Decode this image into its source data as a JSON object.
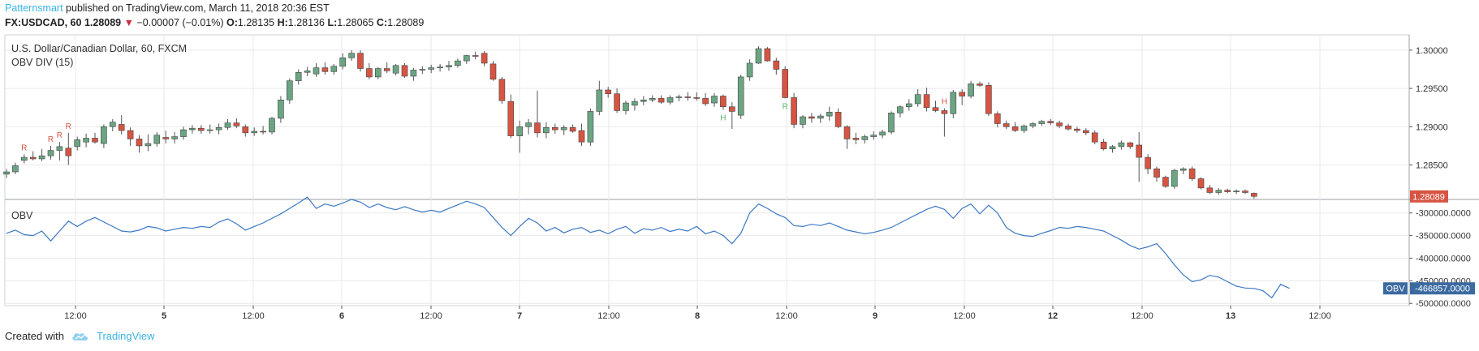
{
  "header": {
    "author": "Patternsmart",
    "published_text": " published on TradingView.com, March 11, 2018 20:36 EST"
  },
  "symbol_line": {
    "symbol": "FX:USDCAD, 60",
    "last": "1.28089",
    "change_arrow": "▼",
    "change": "−0.00007 (−0.01%)",
    "o_label": "O:",
    "o_value": "1.28135",
    "h_label": "H:",
    "h_value": "1.28136",
    "l_label": "L:",
    "l_value": "1.28065",
    "c_label": "C:",
    "c_value": "1.28089"
  },
  "chart_labels": {
    "instrument": "U.S. Dollar/Canadian Dollar, 60, FXCM",
    "indicator": "OBV DIV (15)",
    "obv_pane": "OBV",
    "last_price_tag": "1.28089",
    "obv_tag_name": "OBV",
    "obv_tag_value": "-466857.0000"
  },
  "footer": {
    "created_with": "Created with",
    "brand": "TradingView"
  },
  "colors": {
    "up": "#6ba583",
    "down": "#d75442",
    "obv_line": "#3c78c2",
    "grid": "#e9e9ea",
    "accent": "#3bb3e4",
    "obv_tag": "#3b6aa0"
  },
  "icons": {
    "brand_logo": "tradingview-cloud-icon"
  },
  "chart_data": [
    {
      "type": "candlestick",
      "title": "U.S. Dollar/Canadian Dollar, 60, FXCM",
      "y_ticks": [
        "1.30000",
        "1.29500",
        "1.29000",
        "1.28500"
      ],
      "x_ticks": [
        "12:00",
        "5",
        "12:00",
        "6",
        "12:00",
        "7",
        "12:00",
        "8",
        "12:00",
        "9",
        "12:00",
        "12",
        "12:00",
        "13",
        "12:00"
      ],
      "ylim": [
        1.2805,
        1.302
      ],
      "last_close": 1.28089,
      "candles": [
        [
          1.2838,
          1.2845,
          1.2833,
          1.2841
        ],
        [
          1.2841,
          1.2853,
          1.2838,
          1.2849
        ],
        [
          1.2856,
          1.2864,
          1.2852,
          1.286
        ],
        [
          1.286,
          1.2868,
          1.2856,
          1.2858
        ],
        [
          1.2858,
          1.2871,
          1.2855,
          1.2862
        ],
        [
          1.2862,
          1.2875,
          1.2857,
          1.2869
        ],
        [
          1.2869,
          1.288,
          1.2856,
          1.2874
        ],
        [
          1.2872,
          1.2892,
          1.285,
          1.2862
        ],
        [
          1.2874,
          1.2887,
          1.2869,
          1.2883
        ],
        [
          1.288,
          1.2891,
          1.2873,
          1.2885
        ],
        [
          1.2885,
          1.2892,
          1.2878,
          1.288
        ],
        [
          1.2878,
          1.2903,
          1.2872,
          1.29
        ],
        [
          1.29,
          1.291,
          1.2894,
          1.2906
        ],
        [
          1.2903,
          1.2915,
          1.289,
          1.2895
        ],
        [
          1.2895,
          1.2899,
          1.2875,
          1.2884
        ],
        [
          1.2884,
          1.2889,
          1.2866,
          1.2875
        ],
        [
          1.2875,
          1.289,
          1.2868,
          1.2878
        ],
        [
          1.2878,
          1.2893,
          1.2874,
          1.2889
        ],
        [
          1.2886,
          1.2895,
          1.2878,
          1.2884
        ],
        [
          1.2884,
          1.2893,
          1.2878,
          1.2887
        ],
        [
          1.2887,
          1.29,
          1.2883,
          1.2896
        ],
        [
          1.2896,
          1.2902,
          1.2891,
          1.2898
        ],
        [
          1.2898,
          1.2902,
          1.2891,
          1.2895
        ],
        [
          1.2895,
          1.2903,
          1.2891,
          1.2896
        ],
        [
          1.2896,
          1.2904,
          1.289,
          1.2899
        ],
        [
          1.2899,
          1.291,
          1.2896,
          1.2905
        ],
        [
          1.2905,
          1.2911,
          1.2898,
          1.2901
        ],
        [
          1.29,
          1.2903,
          1.2887,
          1.2892
        ],
        [
          1.2892,
          1.2899,
          1.2888,
          1.2894
        ],
        [
          1.2894,
          1.2901,
          1.289,
          1.2893
        ],
        [
          1.2893,
          1.2913,
          1.289,
          1.2911
        ],
        [
          1.2911,
          1.294,
          1.2905,
          1.2935
        ],
        [
          1.2935,
          1.2963,
          1.293,
          1.296
        ],
        [
          1.296,
          1.2975,
          1.2955,
          1.2971
        ],
        [
          1.2971,
          1.2978,
          1.2966,
          1.2973
        ],
        [
          1.2969,
          1.2983,
          1.2965,
          1.2977
        ],
        [
          1.2977,
          1.2984,
          1.2968,
          1.2972
        ],
        [
          1.2972,
          1.2982,
          1.2968,
          1.2979
        ],
        [
          1.2979,
          1.2996,
          1.2975,
          1.299
        ],
        [
          1.299,
          1.3,
          1.2986,
          1.2996
        ],
        [
          1.2996,
          1.3,
          1.2972,
          1.2976
        ],
        [
          1.2976,
          1.2983,
          1.2962,
          1.2965
        ],
        [
          1.2965,
          1.2978,
          1.2962,
          1.2976
        ],
        [
          1.2976,
          1.2984,
          1.297,
          1.2973
        ],
        [
          1.297,
          1.2982,
          1.2967,
          1.298
        ],
        [
          1.298,
          1.2983,
          1.2964,
          1.2966
        ],
        [
          1.2966,
          1.2977,
          1.296,
          1.2974
        ],
        [
          1.2974,
          1.2979,
          1.2969,
          1.2975
        ],
        [
          1.2975,
          1.2981,
          1.297,
          1.2977
        ],
        [
          1.2977,
          1.2982,
          1.2972,
          1.2978
        ],
        [
          1.2978,
          1.2986,
          1.2973,
          1.298
        ],
        [
          1.298,
          1.2989,
          1.2977,
          1.2986
        ],
        [
          1.2986,
          1.2994,
          1.2982,
          1.2993
        ],
        [
          1.2993,
          1.2998,
          1.2988,
          1.2992
        ],
        [
          1.2996,
          1.2999,
          1.2979,
          1.2983
        ],
        [
          1.2982,
          1.2986,
          1.296,
          1.2962
        ],
        [
          1.2962,
          1.2965,
          1.293,
          1.2934
        ],
        [
          1.2933,
          1.2942,
          1.2885,
          1.2888
        ],
        [
          1.2888,
          1.2908,
          1.2866,
          1.29
        ],
        [
          1.29,
          1.291,
          1.289,
          1.2905
        ],
        [
          1.2905,
          1.2947,
          1.2886,
          1.2892
        ],
        [
          1.2892,
          1.2906,
          1.2885,
          1.2899
        ],
        [
          1.2899,
          1.2904,
          1.2891,
          1.2896
        ],
        [
          1.2896,
          1.2902,
          1.2889,
          1.2899
        ],
        [
          1.2899,
          1.2903,
          1.2892,
          1.2894
        ],
        [
          1.2895,
          1.2904,
          1.2875,
          1.288
        ],
        [
          1.288,
          1.2924,
          1.2875,
          1.292
        ],
        [
          1.292,
          1.296,
          1.2915,
          1.2948
        ],
        [
          1.2948,
          1.2952,
          1.2938,
          1.2943
        ],
        [
          1.2943,
          1.295,
          1.2918,
          1.2921
        ],
        [
          1.2921,
          1.2934,
          1.2916,
          1.2931
        ],
        [
          1.2928,
          1.2937,
          1.2921,
          1.2933
        ],
        [
          1.2933,
          1.294,
          1.2928,
          1.2935
        ],
        [
          1.2935,
          1.2941,
          1.2932,
          1.2937
        ],
        [
          1.2937,
          1.2941,
          1.293,
          1.2932
        ],
        [
          1.2932,
          1.2941,
          1.2929,
          1.2938
        ],
        [
          1.2938,
          1.2942,
          1.2933,
          1.2939
        ],
        [
          1.2939,
          1.2945,
          1.2934,
          1.2938
        ],
        [
          1.2938,
          1.2945,
          1.2934,
          1.2937
        ],
        [
          1.2937,
          1.2944,
          1.2927,
          1.293
        ],
        [
          1.2931,
          1.2944,
          1.2926,
          1.294
        ],
        [
          1.294,
          1.2942,
          1.2922,
          1.2926
        ],
        [
          1.2926,
          1.2932,
          1.2897,
          1.292
        ],
        [
          1.2915,
          1.2968,
          1.291,
          1.2965
        ],
        [
          1.2965,
          1.2988,
          1.296,
          1.2983
        ],
        [
          1.2983,
          1.3005,
          1.2982,
          1.3002
        ],
        [
          1.3002,
          1.3004,
          1.2985,
          1.2986
        ],
        [
          1.2986,
          1.299,
          1.2968,
          1.2975
        ],
        [
          1.2975,
          1.2979,
          1.2937,
          1.2938
        ],
        [
          1.2938,
          1.2944,
          1.2898,
          1.2903
        ],
        [
          1.2903,
          1.2915,
          1.2898,
          1.2913
        ],
        [
          1.2913,
          1.2918,
          1.2905,
          1.2911
        ],
        [
          1.2911,
          1.2917,
          1.2905,
          1.2914
        ],
        [
          1.2914,
          1.2926,
          1.2908,
          1.2919
        ],
        [
          1.2919,
          1.2924,
          1.2898,
          1.29
        ],
        [
          1.29,
          1.2902,
          1.2871,
          1.2884
        ],
        [
          1.2885,
          1.2892,
          1.2877,
          1.2883
        ],
        [
          1.2883,
          1.289,
          1.2878,
          1.2887
        ],
        [
          1.2887,
          1.2894,
          1.2883,
          1.2889
        ],
        [
          1.2889,
          1.2896,
          1.2885,
          1.2893
        ],
        [
          1.2893,
          1.292,
          1.289,
          1.2918
        ],
        [
          1.2918,
          1.2928,
          1.2912,
          1.2926
        ],
        [
          1.2926,
          1.2936,
          1.2921,
          1.293
        ],
        [
          1.293,
          1.2949,
          1.2926,
          1.2942
        ],
        [
          1.2942,
          1.2951,
          1.292,
          1.2925
        ],
        [
          1.2925,
          1.2934,
          1.2919,
          1.2921
        ],
        [
          1.2921,
          1.2924,
          1.2887,
          1.2917
        ],
        [
          1.2917,
          1.2948,
          1.2911,
          1.2945
        ],
        [
          1.2945,
          1.2949,
          1.2928,
          1.294
        ],
        [
          1.294,
          1.296,
          1.2937,
          1.2956
        ],
        [
          1.2956,
          1.2959,
          1.2952,
          1.2954
        ],
        [
          1.2954,
          1.2958,
          1.2914,
          1.2917
        ],
        [
          1.2917,
          1.292,
          1.2899,
          1.2904
        ],
        [
          1.2904,
          1.2908,
          1.2897,
          1.29
        ],
        [
          1.29,
          1.2906,
          1.2893,
          1.2895
        ],
        [
          1.2895,
          1.2903,
          1.2892,
          1.2901
        ],
        [
          1.2901,
          1.2906,
          1.2898,
          1.2904
        ],
        [
          1.2904,
          1.2909,
          1.2901,
          1.2907
        ],
        [
          1.2907,
          1.291,
          1.2902,
          1.2905
        ],
        [
          1.2905,
          1.2908,
          1.2898,
          1.2901
        ],
        [
          1.2901,
          1.2904,
          1.2895,
          1.2897
        ],
        [
          1.2897,
          1.29,
          1.2892,
          1.2895
        ],
        [
          1.2895,
          1.2898,
          1.2889,
          1.2892
        ],
        [
          1.2892,
          1.2895,
          1.2877,
          1.288
        ],
        [
          1.288,
          1.2884,
          1.2869,
          1.2871
        ],
        [
          1.2871,
          1.2876,
          1.2866,
          1.2874
        ],
        [
          1.2874,
          1.2882,
          1.287,
          1.2879
        ],
        [
          1.2879,
          1.288,
          1.2871,
          1.2874
        ],
        [
          1.2876,
          1.2893,
          1.2828,
          1.286
        ],
        [
          1.286,
          1.2864,
          1.2838,
          1.2845
        ],
        [
          1.2845,
          1.2848,
          1.2828,
          1.2834
        ],
        [
          1.2834,
          1.2836,
          1.282,
          1.2822
        ],
        [
          1.2822,
          1.2845,
          1.2819,
          1.2843
        ],
        [
          1.2843,
          1.2847,
          1.2838,
          1.2845
        ],
        [
          1.2845,
          1.2848,
          1.2829,
          1.2832
        ],
        [
          1.2832,
          1.2834,
          1.2818,
          1.282
        ],
        [
          1.282,
          1.2824,
          1.2812,
          1.2814
        ],
        [
          1.2814,
          1.282,
          1.2811,
          1.2817
        ],
        [
          1.2817,
          1.2819,
          1.2813,
          1.2815
        ],
        [
          1.2815,
          1.2818,
          1.2812,
          1.2816
        ],
        [
          1.2816,
          1.2818,
          1.2812,
          1.2814
        ],
        [
          1.2813,
          1.2814,
          1.2806,
          1.2809
        ]
      ],
      "markers": [
        {
          "candle": 2,
          "text": "R",
          "color": "#d75442",
          "pos": "above"
        },
        {
          "candle": 5,
          "text": "R",
          "color": "#d75442",
          "pos": "above"
        },
        {
          "candle": 6,
          "text": "R",
          "color": "#d75442",
          "pos": "above"
        },
        {
          "candle": 7,
          "text": "R",
          "color": "#d75442",
          "pos": "above"
        },
        {
          "candle": 81,
          "text": "H",
          "color": "#55b26a",
          "pos": "below"
        },
        {
          "candle": 88,
          "text": "R",
          "color": "#55b26a",
          "pos": "below"
        },
        {
          "candle": 106,
          "text": "H",
          "color": "#d75442",
          "pos": "above"
        }
      ]
    },
    {
      "type": "line",
      "title": "OBV",
      "series": [
        {
          "name": "OBV",
          "values": [
            -345000,
            -338000,
            -348000,
            -350000,
            -340000,
            -362000,
            -340000,
            -318000,
            -330000,
            -318000,
            -310000,
            -320000,
            -330000,
            -340000,
            -342000,
            -338000,
            -330000,
            -333000,
            -340000,
            -336000,
            -332000,
            -334000,
            -330000,
            -332000,
            -320000,
            -313000,
            -324000,
            -338000,
            -330000,
            -322000,
            -312000,
            -302000,
            -290000,
            -278000,
            -265000,
            -290000,
            -280000,
            -285000,
            -278000,
            -270000,
            -276000,
            -288000,
            -280000,
            -288000,
            -293000,
            -286000,
            -293000,
            -298000,
            -294000,
            -298000,
            -290000,
            -282000,
            -274000,
            -280000,
            -288000,
            -310000,
            -332000,
            -350000,
            -330000,
            -312000,
            -322000,
            -340000,
            -332000,
            -344000,
            -336000,
            -332000,
            -343000,
            -338000,
            -346000,
            -336000,
            -330000,
            -345000,
            -335000,
            -338000,
            -332000,
            -341000,
            -336000,
            -340000,
            -330000,
            -346000,
            -340000,
            -350000,
            -368000,
            -345000,
            -300000,
            -280000,
            -290000,
            -302000,
            -310000,
            -328000,
            -330000,
            -325000,
            -328000,
            -322000,
            -330000,
            -338000,
            -342000,
            -346000,
            -343000,
            -338000,
            -332000,
            -322000,
            -312000,
            -302000,
            -292000,
            -285000,
            -292000,
            -312000,
            -290000,
            -280000,
            -302000,
            -283000,
            -300000,
            -332000,
            -345000,
            -350000,
            -352000,
            -345000,
            -339000,
            -332000,
            -334000,
            -330000,
            -332000,
            -336000,
            -340000,
            -350000,
            -360000,
            -372000,
            -380000,
            -375000,
            -368000,
            -390000,
            -415000,
            -437000,
            -452000,
            -448000,
            -438000,
            -442000,
            -452000,
            -462000,
            -466000,
            -467000,
            -472000,
            -488000,
            -458000,
            -466857
          ]
        }
      ],
      "y_ticks": [
        "-300000.0000",
        "-350000.0000",
        "-400000.0000",
        "-450000.0000",
        "-500000.0000"
      ],
      "ylim": [
        -505000,
        -270000
      ],
      "last_value": -466857
    }
  ]
}
